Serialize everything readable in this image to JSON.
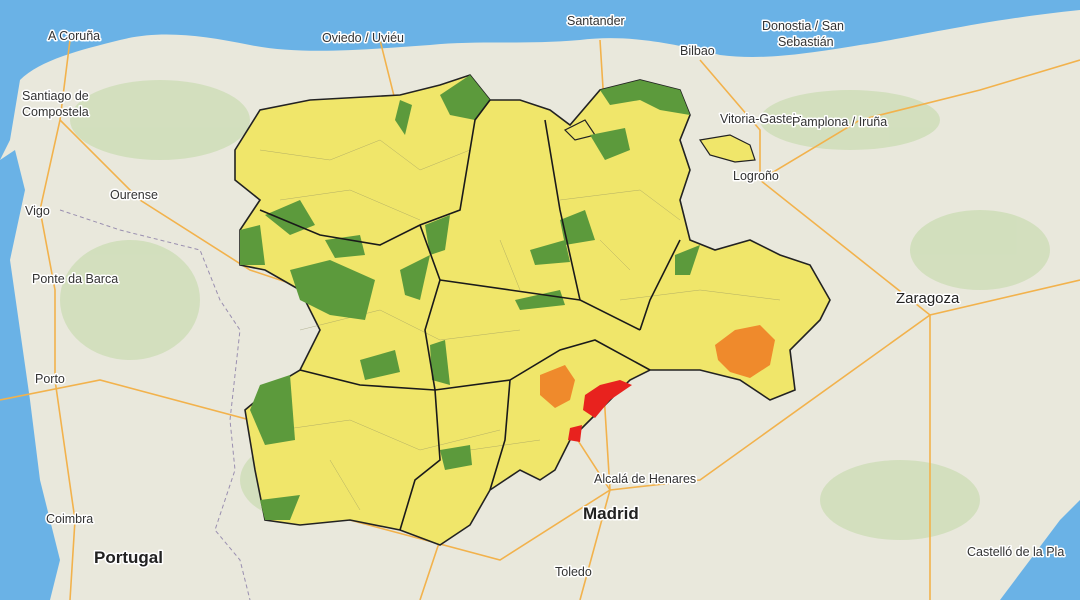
{
  "labels": {
    "a_coruna": "A Coruña",
    "oviedo": "Oviedo / Uviéu",
    "santander": "Santander",
    "bilbao": "Bilbao",
    "donostia": [
      "Donostia / San",
      "Sebastián"
    ],
    "santiago": [
      "Santiago de",
      "Compostela"
    ],
    "vitoria": "Vitoria-Gasteiz",
    "pamplona": "Pamplona / Iruña",
    "logrono": "Logroño",
    "ourense": "Ourense",
    "vigo": "Vigo",
    "ponte_da_barca": "Ponte da Barca",
    "zaragoza": "Zaragoza",
    "porto": "Porto",
    "alcala": "Alcalá de Henares",
    "madrid": "Madrid",
    "coimbra": "Coimbra",
    "portugal": "Portugal",
    "toledo": "Toledo",
    "castello": "Castelló de la Pla"
  }
}
